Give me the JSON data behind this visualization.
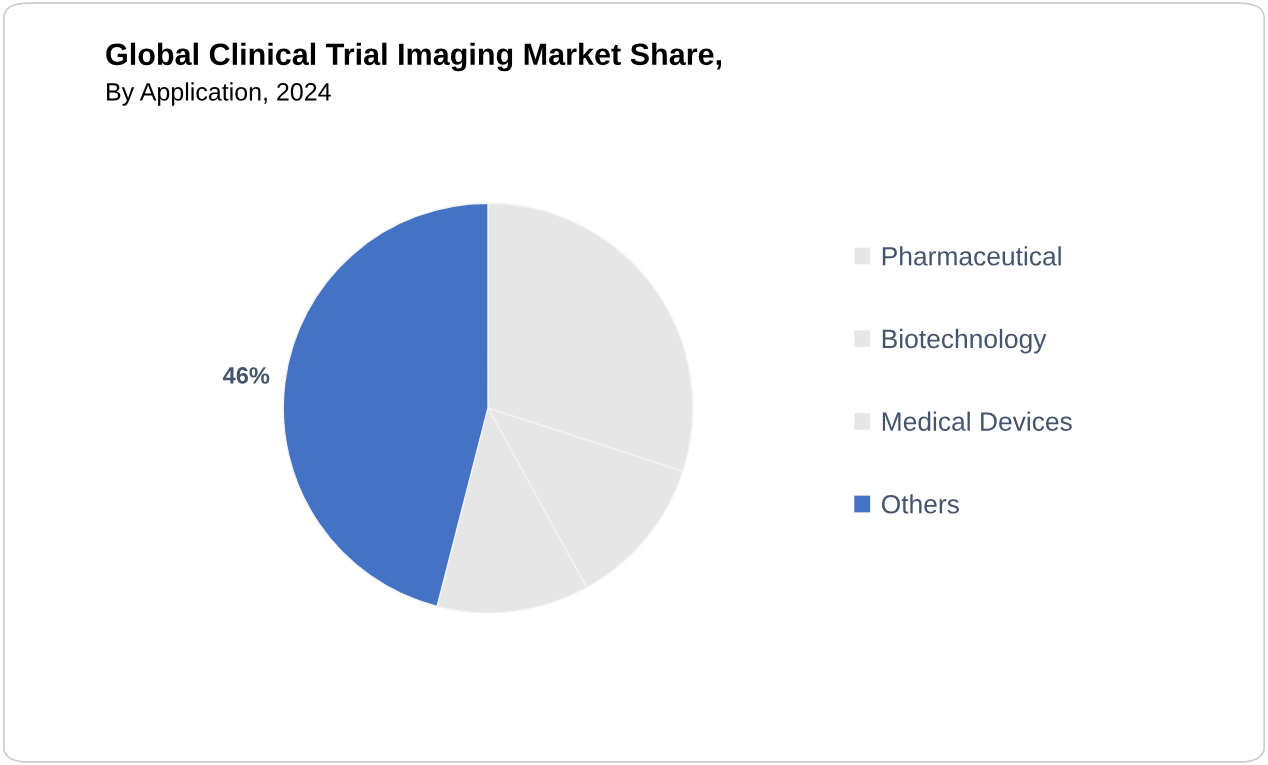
{
  "chart_data": {
    "type": "pie",
    "title": "Global Clinical Trial Imaging Market Share,",
    "subtitle": "By Application, 2024",
    "categories": [
      "Pharmaceutical",
      "Biotechnology",
      "Medical Devices",
      "Others"
    ],
    "values": [
      30,
      12,
      12,
      46
    ],
    "value_labels": [
      null,
      null,
      null,
      "46%"
    ],
    "colors": [
      "#e6e6e6",
      "#e6e6e6",
      "#e6e6e6",
      "#4472c4"
    ],
    "legend": "right"
  }
}
